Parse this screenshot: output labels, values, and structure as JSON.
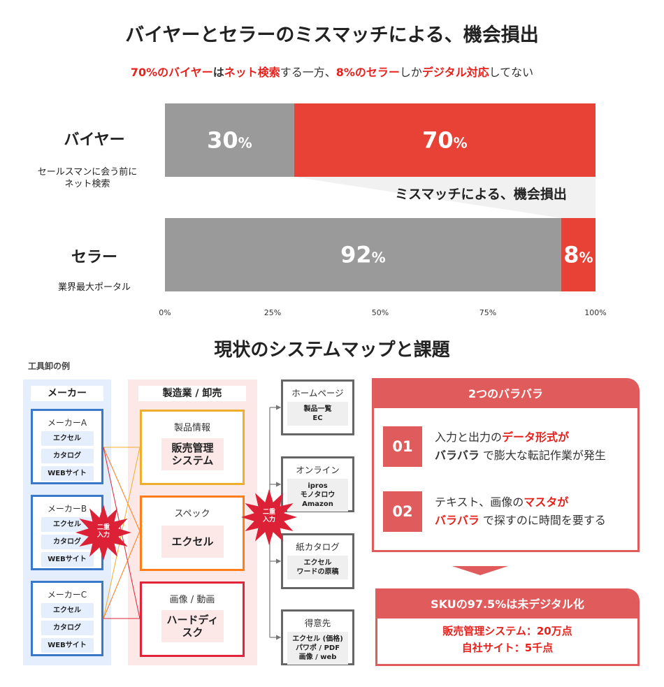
{
  "title": "バイヤーとセラーのミスマッチによる、機会損出",
  "subtitle": {
    "p1": "70%のバイヤー",
    "p2": "は",
    "p3": "ネット検索",
    "p4": "する一方、",
    "p5": "8%のセラー",
    "p6": "しか",
    "p7": "デジタル対応",
    "p8": "してない"
  },
  "chart_data": {
    "type": "bar",
    "stacked": true,
    "orientation": "horizontal",
    "categories": [
      "バイヤー",
      "セラー"
    ],
    "category_notes": [
      "セールスマンに会う前に\nネット検索",
      "業界最大ポータル"
    ],
    "series": [
      {
        "values": [
          30,
          92
        ],
        "color": "#9a9a9a"
      },
      {
        "values": [
          70,
          8
        ],
        "color": "#e84135"
      }
    ],
    "data_labels": [
      [
        "30%",
        "70%"
      ],
      [
        "92%",
        "8%"
      ]
    ],
    "xticks": [
      "0%",
      "25%",
      "50%",
      "75%",
      "100%"
    ],
    "xlim": [
      0,
      100
    ],
    "annotation": "ミスマッチによる、機会損出",
    "grid": false
  },
  "map": {
    "title": "現状のシステムマップと課題",
    "example": "工具卸の例",
    "maker_header": "メーカー",
    "makers": [
      {
        "name": "メーカーA",
        "items": [
          "エクセル",
          "カタログ",
          "WEBサイト"
        ]
      },
      {
        "name": "メーカーB",
        "items": [
          "エクセル",
          "カタログ",
          "WEBサイト"
        ]
      },
      {
        "name": "メーカーC",
        "items": [
          "エクセル",
          "カタログ",
          "WEBサイト"
        ]
      }
    ],
    "mid_header": "製造業 / 卸売",
    "mid": [
      {
        "name": "製品情報",
        "inner": "販売管理\nシステム",
        "color": "#f0ae2e"
      },
      {
        "name": "スペック",
        "inner": "エクセル",
        "color": "#ff7d1a"
      },
      {
        "name": "画像 / 動画",
        "inner": "ハードディ\nスク",
        "color": "#e0243a"
      }
    ],
    "burst": "二重\n入力",
    "outputs": [
      {
        "name": "ホームページ",
        "inner": "製品一覧\nEC"
      },
      {
        "name": "オンライン",
        "inner": "ipros\nモノタロウ\nAmazon"
      },
      {
        "name": "紙カタログ",
        "inner": "エクセル\nワードの原稿"
      },
      {
        "name": "得意先",
        "inner": "エクセル (価格)\nパワポ / PDF\n画像 / web"
      }
    ]
  },
  "issues": {
    "header": "2つのバラバラ",
    "items": [
      {
        "num": "01",
        "a": "入力と出力の",
        "b": "データ形式が",
        "c": "バラバラ",
        "d": " で膨大な転記作業が発生"
      },
      {
        "num": "02",
        "a": "テキスト、画像の",
        "b": "マスタが",
        "c": "バラバラ",
        "d": " で探すのに時間を要する"
      }
    ]
  },
  "sku": {
    "header": "SKUの97.5%は未デジタル化",
    "line1": "販売管理システム：20万点",
    "line2": "自社サイト：5千点"
  }
}
